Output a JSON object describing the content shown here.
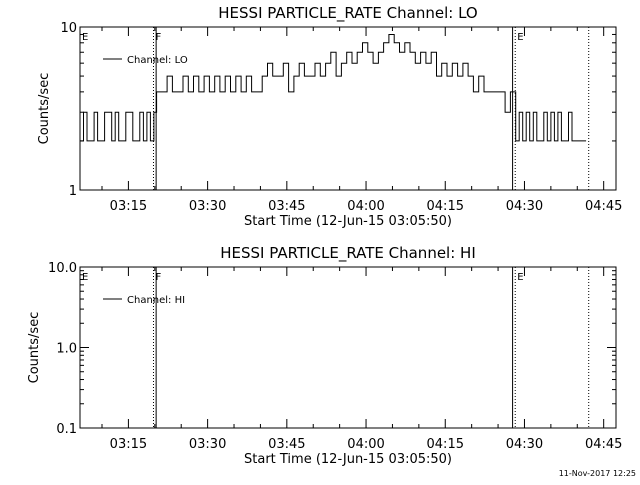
{
  "footer": {
    "timestamp": "11-Nov-2017 12:25"
  },
  "chart_data": [
    {
      "type": "line",
      "title": "HESSI PARTICLE_RATE Channel: LO",
      "xlabel": "Start Time (12-Jun-15 03:05:50)",
      "ylabel": "Counts/sec",
      "yscale": "log",
      "ylim": [
        1,
        10
      ],
      "ytick_labels": [
        "1",
        "10"
      ],
      "x_ticks": [
        "03:15",
        "03:30",
        "03:45",
        "04:00",
        "04:15",
        "04:30",
        "04:45"
      ],
      "xlim": [
        "03:05:50",
        "04:47:20"
      ],
      "legend": {
        "label": "Channel: LO",
        "position": "top-left"
      },
      "markers": [
        {
          "label": "E",
          "time": "03:05:50",
          "style": "none"
        },
        {
          "label": "F",
          "time": "03:19:45",
          "style": "dotted"
        },
        {
          "label": "",
          "time": "03:20:15",
          "style": "solid"
        },
        {
          "label": "",
          "time": "04:27:45",
          "style": "solid"
        },
        {
          "label": "E",
          "time": "04:28:15",
          "style": "dotted"
        },
        {
          "label": "",
          "time": "04:42:10",
          "style": "dotted"
        }
      ],
      "series": [
        {
          "name": "Channel: LO",
          "points": [
            [
              "03:05:50",
              2
            ],
            [
              "03:06:30",
              3
            ],
            [
              "03:07:10",
              2
            ],
            [
              "03:07:50",
              2
            ],
            [
              "03:08:30",
              3
            ],
            [
              "03:09:10",
              2
            ],
            [
              "03:09:50",
              2
            ],
            [
              "03:10:30",
              3
            ],
            [
              "03:11:10",
              3
            ],
            [
              "03:11:50",
              2
            ],
            [
              "03:12:30",
              3
            ],
            [
              "03:13:10",
              2
            ],
            [
              "03:13:50",
              2
            ],
            [
              "03:14:30",
              3
            ],
            [
              "03:15:10",
              3
            ],
            [
              "03:15:50",
              2
            ],
            [
              "03:16:30",
              2
            ],
            [
              "03:17:10",
              3
            ],
            [
              "03:17:50",
              2
            ],
            [
              "03:18:30",
              3
            ],
            [
              "03:19:10",
              2
            ],
            [
              "03:19:50",
              3
            ],
            [
              "03:20:20",
              4
            ],
            [
              "03:21:20",
              4
            ],
            [
              "03:22:20",
              5
            ],
            [
              "03:23:20",
              4
            ],
            [
              "03:24:20",
              4
            ],
            [
              "03:25:20",
              5
            ],
            [
              "03:26:20",
              4
            ],
            [
              "03:27:20",
              5
            ],
            [
              "03:28:20",
              4
            ],
            [
              "03:29:20",
              5
            ],
            [
              "03:30:20",
              4
            ],
            [
              "03:31:20",
              5
            ],
            [
              "03:32:20",
              4
            ],
            [
              "03:33:20",
              5
            ],
            [
              "03:34:20",
              4
            ],
            [
              "03:35:20",
              5
            ],
            [
              "03:36:20",
              4
            ],
            [
              "03:37:20",
              5
            ],
            [
              "03:38:20",
              4
            ],
            [
              "03:39:20",
              4
            ],
            [
              "03:40:20",
              5
            ],
            [
              "03:41:20",
              6
            ],
            [
              "03:42:20",
              5
            ],
            [
              "03:43:20",
              5
            ],
            [
              "03:44:20",
              6
            ],
            [
              "03:45:20",
              4
            ],
            [
              "03:46:20",
              5
            ],
            [
              "03:47:20",
              6
            ],
            [
              "03:48:20",
              5
            ],
            [
              "03:49:20",
              5
            ],
            [
              "03:50:20",
              6
            ],
            [
              "03:51:20",
              5
            ],
            [
              "03:52:20",
              6
            ],
            [
              "03:53:20",
              7
            ],
            [
              "03:54:20",
              5
            ],
            [
              "03:55:20",
              6
            ],
            [
              "03:56:20",
              7
            ],
            [
              "03:57:20",
              6
            ],
            [
              "03:58:20",
              7
            ],
            [
              "03:59:20",
              8
            ],
            [
              "04:00:20",
              7
            ],
            [
              "04:01:20",
              6
            ],
            [
              "04:02:20",
              7
            ],
            [
              "04:03:20",
              8
            ],
            [
              "04:04:20",
              9
            ],
            [
              "04:05:20",
              8
            ],
            [
              "04:06:20",
              7
            ],
            [
              "04:07:20",
              8
            ],
            [
              "04:08:20",
              7
            ],
            [
              "04:09:20",
              6
            ],
            [
              "04:10:20",
              7
            ],
            [
              "04:11:20",
              6
            ],
            [
              "04:12:20",
              7
            ],
            [
              "04:13:20",
              5
            ],
            [
              "04:14:20",
              6
            ],
            [
              "04:15:20",
              5
            ],
            [
              "04:16:20",
              6
            ],
            [
              "04:17:20",
              5
            ],
            [
              "04:18:20",
              6
            ],
            [
              "04:19:20",
              5
            ],
            [
              "04:20:20",
              4
            ],
            [
              "04:21:20",
              5
            ],
            [
              "04:22:20",
              4
            ],
            [
              "04:23:20",
              4
            ],
            [
              "04:24:20",
              4
            ],
            [
              "04:25:20",
              4
            ],
            [
              "04:26:20",
              3
            ],
            [
              "04:27:20",
              4
            ],
            [
              "04:28:20",
              2
            ],
            [
              "04:29:00",
              3
            ],
            [
              "04:29:40",
              2
            ],
            [
              "04:30:20",
              3
            ],
            [
              "04:31:00",
              2
            ],
            [
              "04:31:40",
              3
            ],
            [
              "04:32:20",
              2
            ],
            [
              "04:33:00",
              2
            ],
            [
              "04:33:40",
              3
            ],
            [
              "04:34:20",
              2
            ],
            [
              "04:35:00",
              3
            ],
            [
              "04:35:40",
              2
            ],
            [
              "04:36:20",
              3
            ],
            [
              "04:37:00",
              2
            ],
            [
              "04:37:40",
              2
            ],
            [
              "04:38:20",
              3
            ],
            [
              "04:39:00",
              2
            ],
            [
              "04:39:40",
              2
            ],
            [
              "04:40:20",
              2
            ],
            [
              "04:41:00",
              2
            ],
            [
              "04:41:40",
              2
            ]
          ]
        }
      ]
    },
    {
      "type": "line",
      "title": "HESSI PARTICLE_RATE Channel: HI",
      "xlabel": "Start Time (12-Jun-15 03:05:50)",
      "ylabel": "Counts/sec",
      "yscale": "log",
      "ylim": [
        0.1,
        10
      ],
      "ytick_labels": [
        "0.1",
        "1.0",
        "10.0"
      ],
      "x_ticks": [
        "03:15",
        "03:30",
        "03:45",
        "04:00",
        "04:15",
        "04:30",
        "04:45"
      ],
      "xlim": [
        "03:05:50",
        "04:47:20"
      ],
      "legend": {
        "label": "Channel: HI",
        "position": "top-left"
      },
      "markers": [
        {
          "label": "E",
          "time": "03:05:50",
          "style": "none"
        },
        {
          "label": "F",
          "time": "03:19:45",
          "style": "dotted"
        },
        {
          "label": "",
          "time": "03:20:15",
          "style": "solid"
        },
        {
          "label": "",
          "time": "04:27:45",
          "style": "solid"
        },
        {
          "label": "E",
          "time": "04:28:15",
          "style": "dotted"
        },
        {
          "label": "",
          "time": "04:42:10",
          "style": "dotted"
        }
      ],
      "series": []
    }
  ]
}
